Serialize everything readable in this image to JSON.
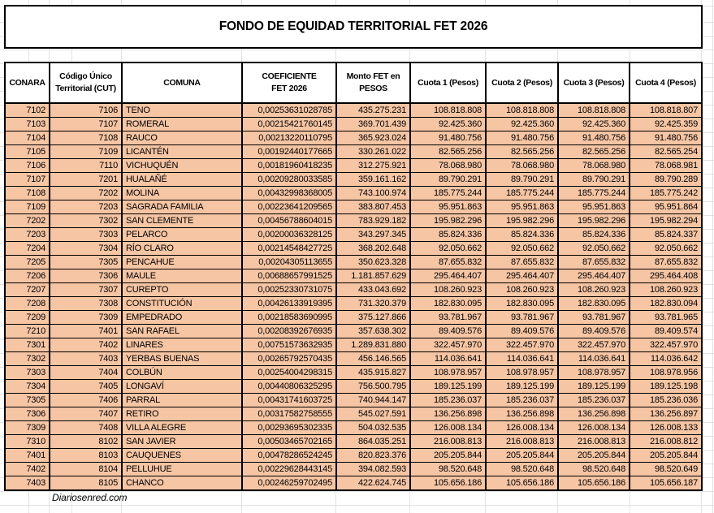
{
  "title": "FONDO DE EQUIDAD TERRITORIAL FET 2026",
  "footer": {
    "credit": "Diariosenred.com"
  },
  "colors": {
    "row_fill": "#F6C5A4",
    "table_border": "#000000",
    "gridline": "#E2E2E2"
  },
  "table": {
    "columns": [
      "CONARA",
      "Código Único\nTerritorial (CUT)",
      "COMUNA",
      "COEFICIENTE\nFET 2026",
      "Monto FET en\nPESOS",
      "Cuota 1 (Pesos)",
      "Cuota 2 (Pesos)",
      "Cuota 3 (Pesos)",
      "Cuota 4 (Pesos)"
    ],
    "column_keys": [
      "conara",
      "cut",
      "comuna",
      "coeficiente",
      "monto",
      "cuota1",
      "cuota2",
      "cuota3",
      "cuota4"
    ],
    "rows": [
      [
        "7102",
        "7106",
        "TENO",
        "0,00253631028785",
        "435.275.231",
        "108.818.808",
        "108.818.808",
        "108.818.808",
        "108.818.807"
      ],
      [
        "7103",
        "7107",
        "ROMERAL",
        "0,00215421760145",
        "369.701.439",
        "92.425.360",
        "92.425.360",
        "92.425.360",
        "92.425.359"
      ],
      [
        "7104",
        "7108",
        "RAUCO",
        "0,00213220110795",
        "365.923.024",
        "91.480.756",
        "91.480.756",
        "91.480.756",
        "91.480.756"
      ],
      [
        "7105",
        "7109",
        "LICANTÉN",
        "0,00192440177665",
        "330.261.022",
        "82.565.256",
        "82.565.256",
        "82.565.256",
        "82.565.254"
      ],
      [
        "7106",
        "7110",
        "VICHUQUÉN",
        "0,00181960418235",
        "312.275.921",
        "78.068.980",
        "78.068.980",
        "78.068.980",
        "78.068.981"
      ],
      [
        "7107",
        "7201",
        "HUALAÑÉ",
        "0,00209280033585",
        "359.161.162",
        "89.790.291",
        "89.790.291",
        "89.790.291",
        "89.790.289"
      ],
      [
        "7108",
        "7202",
        "MOLINA",
        "0,00432998368005",
        "743.100.974",
        "185.775.244",
        "185.775.244",
        "185.775.244",
        "185.775.242"
      ],
      [
        "7109",
        "7203",
        "SAGRADA FAMILIA",
        "0,00223641209565",
        "383.807.453",
        "95.951.863",
        "95.951.863",
        "95.951.863",
        "95.951.864"
      ],
      [
        "7202",
        "7302",
        "SAN CLEMENTE",
        "0,00456788604015",
        "783.929.182",
        "195.982.296",
        "195.982.296",
        "195.982.296",
        "195.982.294"
      ],
      [
        "7203",
        "7303",
        "PELARCO",
        "0,00200036328125",
        "343.297.345",
        "85.824.336",
        "85.824.336",
        "85.824.336",
        "85.824.337"
      ],
      [
        "7204",
        "7304",
        "RÍO CLARO",
        "0,00214548427725",
        "368.202.648",
        "92.050.662",
        "92.050.662",
        "92.050.662",
        "92.050.662"
      ],
      [
        "7205",
        "7305",
        "PENCAHUE",
        "0,00204305113655",
        "350.623.328",
        "87.655.832",
        "87.655.832",
        "87.655.832",
        "87.655.832"
      ],
      [
        "7206",
        "7306",
        "MAULE",
        "0,00688657991525",
        "1.181.857.629",
        "295.464.407",
        "295.464.407",
        "295.464.407",
        "295.464.408"
      ],
      [
        "7207",
        "7307",
        "CUREPTO",
        "0,00252330731075",
        "433.043.692",
        "108.260.923",
        "108.260.923",
        "108.260.923",
        "108.260.923"
      ],
      [
        "7208",
        "7308",
        "CONSTITUCIÓN",
        "0,00426133919395",
        "731.320.379",
        "182.830.095",
        "182.830.095",
        "182.830.095",
        "182.830.094"
      ],
      [
        "7209",
        "7309",
        "EMPEDRADO",
        "0,00218583690995",
        "375.127.866",
        "93.781.967",
        "93.781.967",
        "93.781.967",
        "93.781.965"
      ],
      [
        "7210",
        "7401",
        "SAN RAFAEL",
        "0,00208392676935",
        "357.638.302",
        "89.409.576",
        "89.409.576",
        "89.409.576",
        "89.409.574"
      ],
      [
        "7301",
        "7402",
        "LINARES",
        "0,00751573632935",
        "1.289.831.880",
        "322.457.970",
        "322.457.970",
        "322.457.970",
        "322.457.970"
      ],
      [
        "7302",
        "7403",
        "YERBAS BUENAS",
        "0,00265792570435",
        "456.146.565",
        "114.036.641",
        "114.036.641",
        "114.036.641",
        "114.036.642"
      ],
      [
        "7303",
        "7404",
        "COLBÚN",
        "0,00254004298315",
        "435.915.827",
        "108.978.957",
        "108.978.957",
        "108.978.957",
        "108.978.956"
      ],
      [
        "7304",
        "7405",
        "LONGAVÍ",
        "0,00440806325295",
        "756.500.795",
        "189.125.199",
        "189.125.199",
        "189.125.199",
        "189.125.198"
      ],
      [
        "7305",
        "7406",
        "PARRAL",
        "0,00431741603725",
        "740.944.147",
        "185.236.037",
        "185.236.037",
        "185.236.037",
        "185.236.036"
      ],
      [
        "7306",
        "7407",
        "RETIRO",
        "0,00317582758555",
        "545.027.591",
        "136.256.898",
        "136.256.898",
        "136.256.898",
        "136.256.897"
      ],
      [
        "7309",
        "7408",
        "VILLA ALEGRE",
        "0,00293695302335",
        "504.032.535",
        "126.008.134",
        "126.008.134",
        "126.008.134",
        "126.008.133"
      ],
      [
        "7310",
        "8102",
        "SAN JAVIER",
        "0,00503465702165",
        "864.035.251",
        "216.008.813",
        "216.008.813",
        "216.008.813",
        "216.008.812"
      ],
      [
        "7401",
        "8103",
        "CAUQUENES",
        "0,00478286524245",
        "820.823.376",
        "205.205.844",
        "205.205.844",
        "205.205.844",
        "205.205.844"
      ],
      [
        "7402",
        "8104",
        "PELLUHUE",
        "0,00229628443145",
        "394.082.593",
        "98.520.648",
        "98.520.648",
        "98.520.648",
        "98.520.649"
      ],
      [
        "7403",
        "8105",
        "CHANCO",
        "0,00246259702495",
        "422.624.745",
        "105.656.186",
        "105.656.186",
        "105.656.186",
        "105.656.187"
      ]
    ]
  }
}
